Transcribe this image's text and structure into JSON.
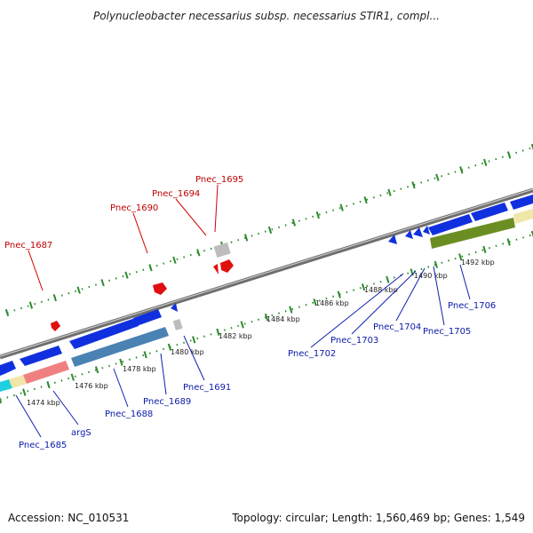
{
  "title": "Polynucleobacter necessarius subsp. necessarius STIR1, compl...",
  "footer": {
    "accession": "Accession: NC_010531",
    "summary": "Topology: circular; Length: 1,560,469 bp; Genes: 1,549"
  },
  "colors": {
    "backbone": "#7a7a7a",
    "tick": "#2e8b2e",
    "forward_gene": "#d81010",
    "reverse_gene": "#1030e0",
    "forward_label": "#c00000",
    "reverse_label": "#0a1aa8",
    "cog_blue": "#1f5fc8",
    "cog_steel": "#4a82b4",
    "cog_olive": "#6b8e23",
    "cog_pink": "#f08080",
    "cog_yellow": "#f0e6a8",
    "cog_cyan": "#20d0e0",
    "cog_gray": "#bdbdbd"
  },
  "kbp_labels": [
    "1474 kbp",
    "1476 kbp",
    "1478 kbp",
    "1480 kbp",
    "1482 kbp",
    "1484 kbp",
    "1486 kbp",
    "1488 kbp",
    "1490 kbp",
    "1492 kbp"
  ],
  "forward_genes": [
    "Pnec_1687",
    "Pnec_1690",
    "Pnec_1694",
    "Pnec_1695"
  ],
  "reverse_genes": [
    "Pnec_1685",
    "argS",
    "Pnec_1688",
    "Pnec_1689",
    "Pnec_1691",
    "Pnec_1702",
    "Pnec_1703",
    "Pnec_1704",
    "Pnec_1705",
    "Pnec_1706"
  ]
}
